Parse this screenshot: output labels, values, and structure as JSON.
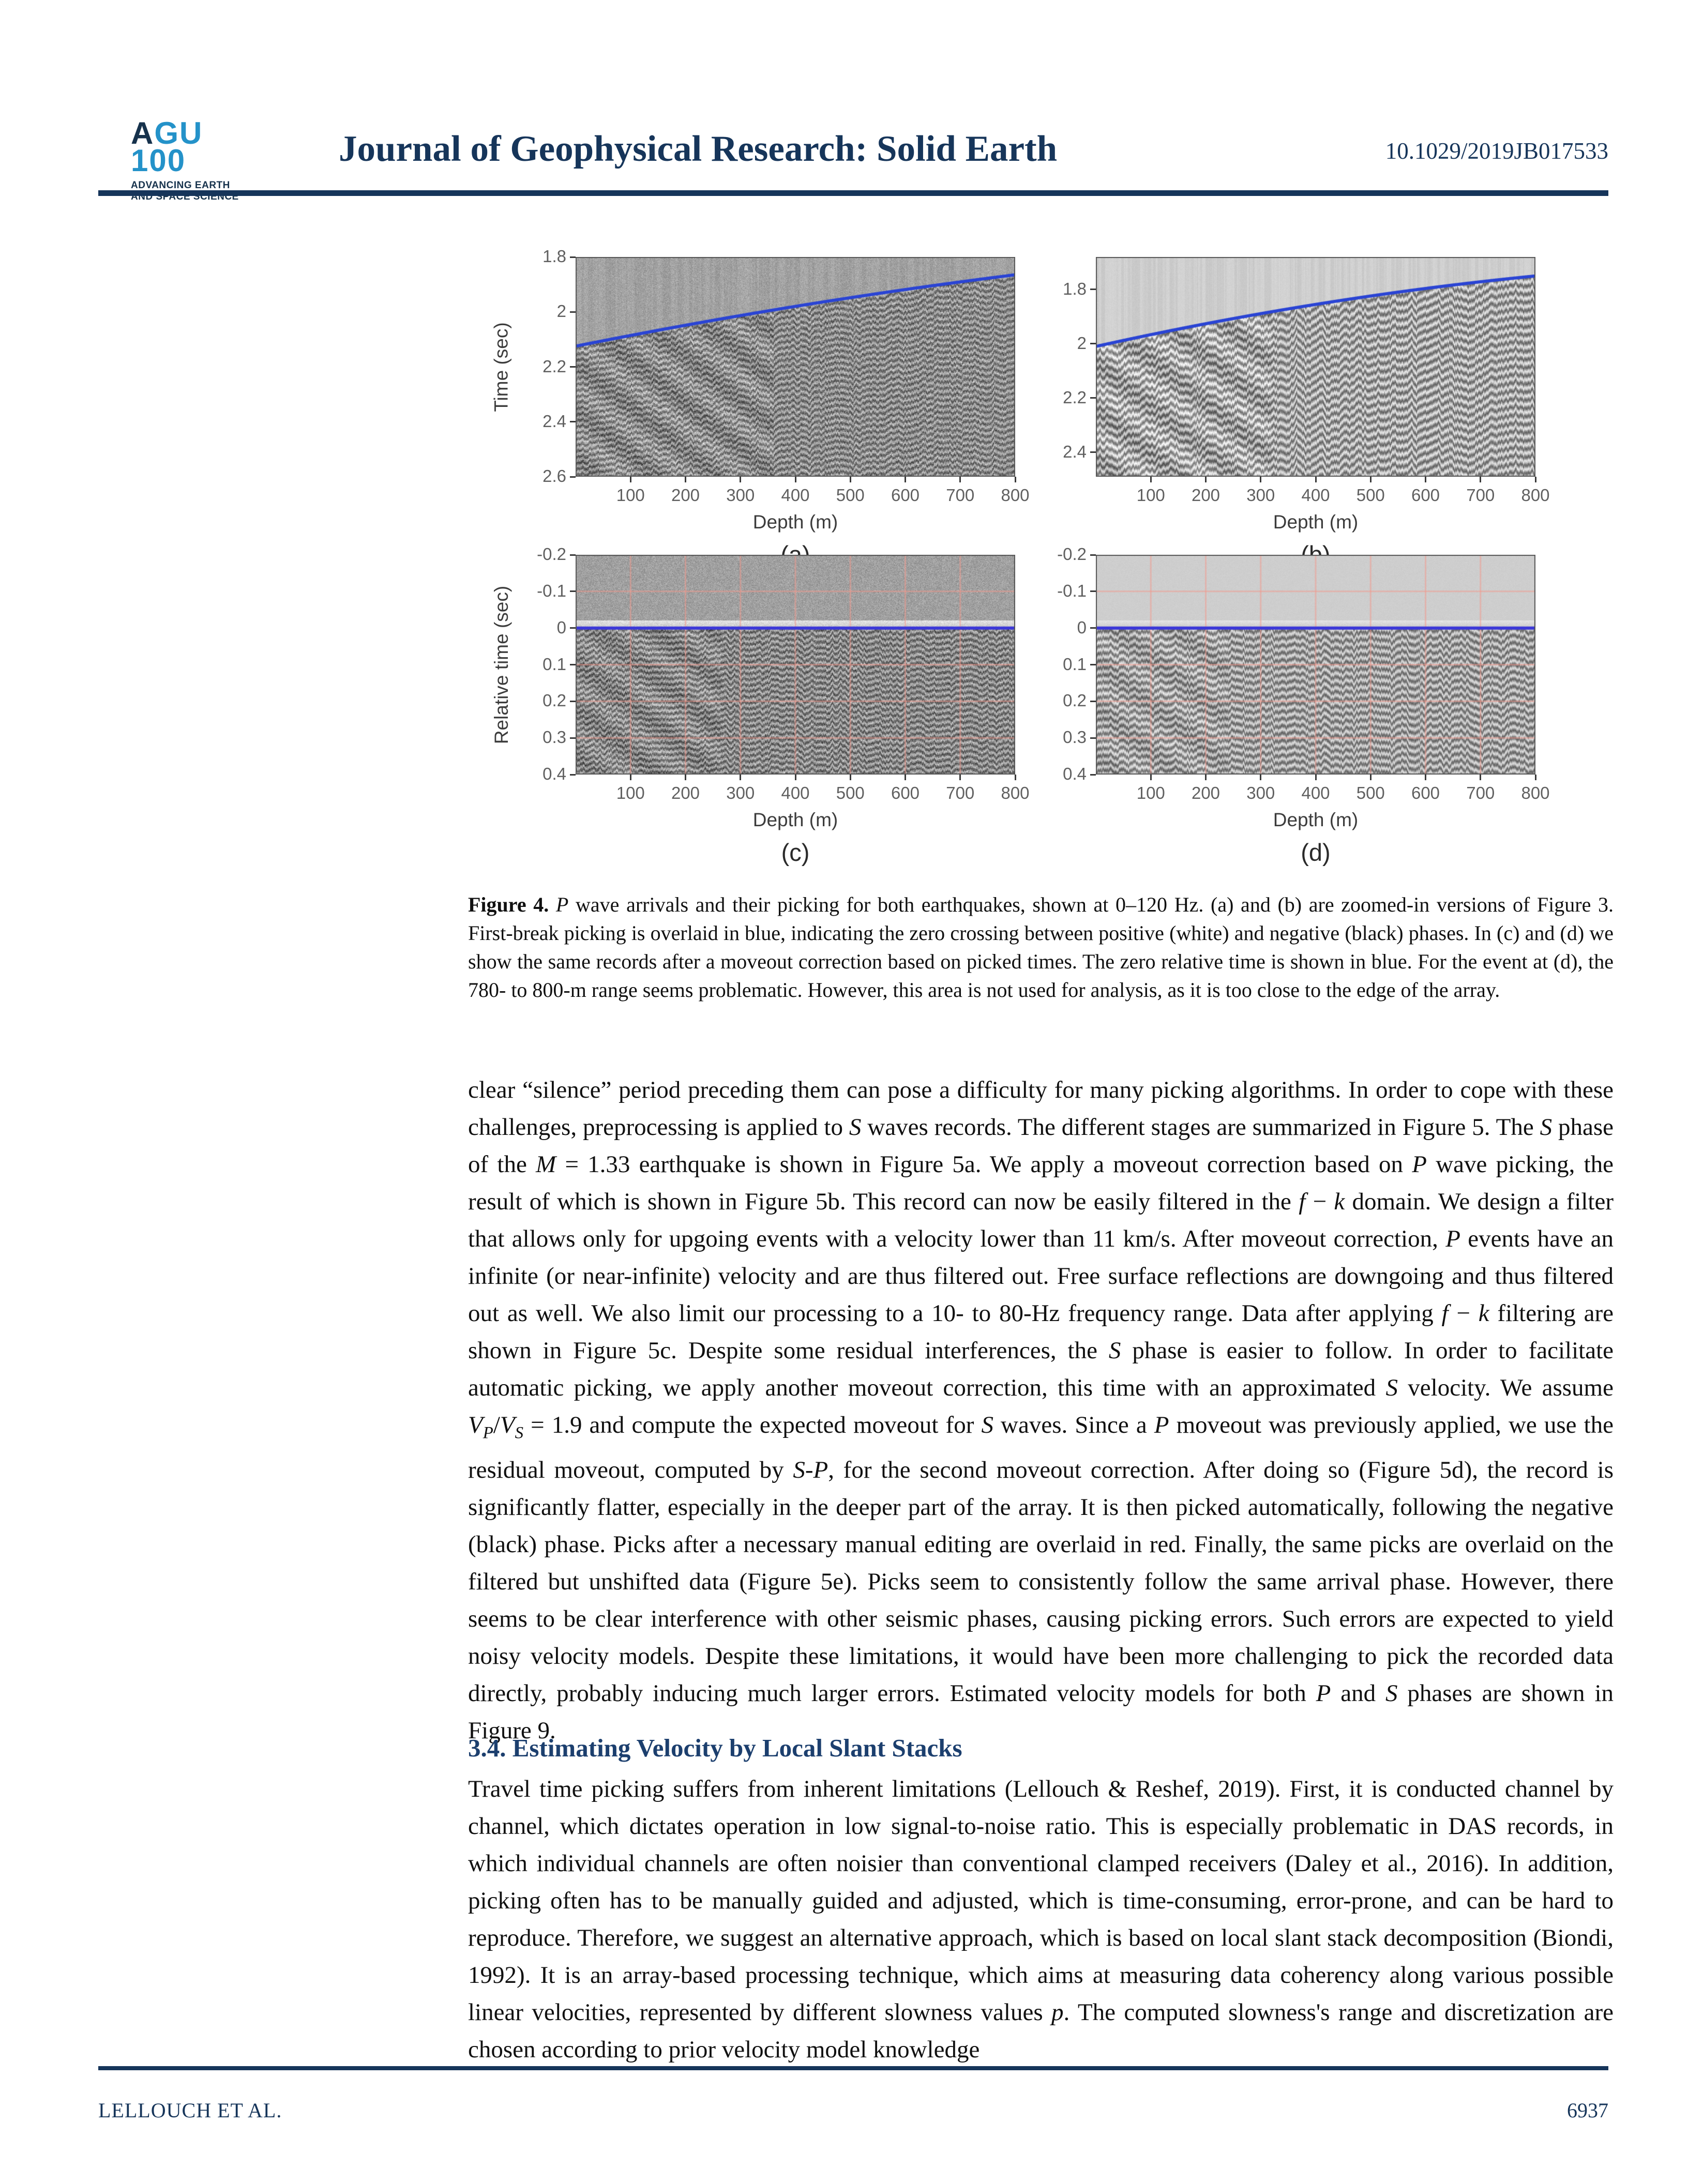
{
  "header": {
    "journal_title": "Journal of Geophysical Research: Solid Earth",
    "doi": "10.1029/2019JB017533",
    "logo": {
      "line1": "AGU",
      "line2": "100",
      "tagline1": "ADVANCING EARTH",
      "tagline2": "AND SPACE SCIENCE"
    }
  },
  "chart_data": {
    "type": "heatmap",
    "figure_label": "Figure 4",
    "colors": {
      "pick_line": "#2a44d4",
      "zero_line": "#3b37d8",
      "grid_line": "#f4978c",
      "navy": "#16355a"
    },
    "panels": [
      {
        "id": "a",
        "sublabel": "(a)",
        "xlabel": "Depth (m)",
        "ylabel": "Time (sec)",
        "xlim": [
          0,
          800
        ],
        "xticks": [
          100,
          200,
          300,
          400,
          500,
          600,
          700,
          800
        ],
        "ylim": [
          1.8,
          2.6
        ],
        "yticks": [
          {
            "v": 1.8,
            "l": "1.8"
          },
          {
            "v": 2,
            "l": "2"
          },
          {
            "v": 2.2,
            "l": "2.2"
          },
          {
            "v": 2.4,
            "l": "2.4"
          },
          {
            "v": 2.6,
            "l": "2.6"
          }
        ],
        "pick_depths": [
          0,
          400,
          800
        ],
        "pick_times": [
          2.125,
          1.98,
          1.865
        ],
        "texture": "grainy",
        "grid": false
      },
      {
        "id": "b",
        "sublabel": "(b)",
        "xlabel": "Depth (m)",
        "ylabel": null,
        "xlim": [
          0,
          800
        ],
        "xticks": [
          100,
          200,
          300,
          400,
          500,
          600,
          700,
          800
        ],
        "ylim": [
          1.68,
          2.49
        ],
        "yticks": [
          {
            "v": 1.8,
            "l": "1.8"
          },
          {
            "v": 2,
            "l": "2"
          },
          {
            "v": 2.2,
            "l": "2.2"
          },
          {
            "v": 2.4,
            "l": "2.4"
          }
        ],
        "pick_depths": [
          0,
          400,
          800
        ],
        "pick_times": [
          2.01,
          1.855,
          1.75
        ],
        "texture": "smooth",
        "grid": false
      },
      {
        "id": "c",
        "sublabel": "(c)",
        "xlabel": "Depth (m)",
        "ylabel": "Relative time (sec)",
        "xlim": [
          0,
          800
        ],
        "xticks": [
          100,
          200,
          300,
          400,
          500,
          600,
          700,
          800
        ],
        "ylim": [
          -0.2,
          0.4
        ],
        "yticks": [
          {
            "v": -0.2,
            "l": "-0.2"
          },
          {
            "v": -0.1,
            "l": "-0.1"
          },
          {
            "v": 0,
            "l": "0"
          },
          {
            "v": 0.1,
            "l": "0.1"
          },
          {
            "v": 0.2,
            "l": "0.2"
          },
          {
            "v": 0.3,
            "l": "0.3"
          },
          {
            "v": 0.4,
            "l": "0.4"
          }
        ],
        "zero_line_time": 0,
        "texture": "grainy",
        "grid": true
      },
      {
        "id": "d",
        "sublabel": "(d)",
        "xlabel": "Depth (m)",
        "ylabel": null,
        "xlim": [
          0,
          800
        ],
        "xticks": [
          100,
          200,
          300,
          400,
          500,
          600,
          700,
          800
        ],
        "ylim": [
          -0.2,
          0.4
        ],
        "yticks": [
          {
            "v": -0.2,
            "l": "-0.2"
          },
          {
            "v": -0.1,
            "l": "-0.1"
          },
          {
            "v": 0,
            "l": "0"
          },
          {
            "v": 0.1,
            "l": "0.1"
          },
          {
            "v": 0.2,
            "l": "0.2"
          },
          {
            "v": 0.3,
            "l": "0.3"
          },
          {
            "v": 0.4,
            "l": "0.4"
          }
        ],
        "zero_line_time": 0,
        "texture": "smooth",
        "grid": true
      }
    ]
  },
  "figure": {
    "caption_segments": [
      {
        "t": "Figure 4.",
        "b": 1
      },
      {
        "t": " "
      },
      {
        "t": "P",
        "i": 1
      },
      {
        "t": " wave arrivals and their picking for both earthquakes, shown at 0–120 Hz. (a) and (b) are zoomed-in versions of Figure 3. First-break picking is overlaid in blue, indicating the zero crossing between positive (white) and negative (black) phases. In (c) and (d) we show the same records after a moveout correction based on picked times. The zero relative time is shown in blue. For the event at (d), the 780- to 800-m range seems problematic. However, this area is not used for analysis, as it is too close to the edge of the array."
      }
    ]
  },
  "body": {
    "para1_segments": [
      {
        "t": "clear “silence” period preceding them can pose a difficulty for many picking algorithms. In order to cope with these challenges, preprocessing is applied to "
      },
      {
        "t": "S",
        "i": 1
      },
      {
        "t": " waves records. The different stages are summarized in Figure 5. The "
      },
      {
        "t": "S",
        "i": 1
      },
      {
        "t": " phase of the "
      },
      {
        "t": "M",
        "i": 1
      },
      {
        "t": " = 1.33 earthquake is shown in Figure 5a. We apply a moveout correction based on "
      },
      {
        "t": "P",
        "i": 1
      },
      {
        "t": " wave picking, the result of which is shown in Figure 5b. This record can now be easily filtered in the "
      },
      {
        "t": "f",
        "i": 1
      },
      {
        "t": " − "
      },
      {
        "t": "k",
        "i": 1
      },
      {
        "t": " domain. We design a filter that allows only for upgoing events with a velocity lower than 11 km/s. After moveout correction, "
      },
      {
        "t": "P",
        "i": 1
      },
      {
        "t": " events have an infinite (or near-infinite) velocity and are thus filtered out. Free surface reflections are downgoing and thus filtered out as well. We also limit our processing to a 10- to 80-Hz frequency range. Data after applying "
      },
      {
        "t": "f",
        "i": 1
      },
      {
        "t": " − "
      },
      {
        "t": "k",
        "i": 1
      },
      {
        "t": " filtering are shown in Figure 5c. Despite some residual interferences, the "
      },
      {
        "t": "S",
        "i": 1
      },
      {
        "t": " phase is easier to follow. In order to facilitate automatic picking, we apply another moveout correction, this time with an approximated "
      },
      {
        "t": "S",
        "i": 1
      },
      {
        "t": " velocity. We assume "
      },
      {
        "t": "V",
        "i": 1
      },
      {
        "t": "P",
        "i": 1,
        "sub": 1
      },
      {
        "t": "/"
      },
      {
        "t": "V",
        "i": 1
      },
      {
        "t": "S",
        "i": 1,
        "sub": 1
      },
      {
        "t": " = 1.9 and compute the expected moveout for "
      },
      {
        "t": "S",
        "i": 1
      },
      {
        "t": " waves. Since a "
      },
      {
        "t": "P",
        "i": 1
      },
      {
        "t": " moveout was previously applied, we use the residual moveout, computed by "
      },
      {
        "t": "S-P",
        "i": 1
      },
      {
        "t": ", for the second moveout correction. After doing so (Figure 5d), the record is significantly flatter, especially in the deeper part of the array. It is then picked automatically, following the negative (black) phase. Picks after a necessary manual editing are overlaid in red. Finally, the same picks are overlaid on the filtered but unshifted data (Figure 5e). Picks seem to consistently follow the same arrival phase. However, there seems to be clear interference with other seismic phases, causing picking errors. Such errors are expected to yield noisy velocity models. Despite these limitations, it would have been more challenging to pick the recorded data directly, probably inducing much larger errors. Estimated velocity models for both "
      },
      {
        "t": "P",
        "i": 1
      },
      {
        "t": " and "
      },
      {
        "t": "S",
        "i": 1
      },
      {
        "t": " phases are shown in Figure 9."
      }
    ],
    "heading": "3.4. Estimating Velocity by Local Slant Stacks",
    "para2_segments": [
      {
        "t": "Travel time picking suffers from inherent limitations (Lellouch & Reshef, 2019). First, it is conducted channel by channel, which dictates operation in low signal-to-noise ratio. This is especially problematic in DAS records, in which individual channels are often noisier than conventional clamped receivers (Daley et al., 2016). In addition, picking often has to be manually guided and adjusted, which is time-consuming, error-prone, and can be hard to reproduce. Therefore, we suggest an alternative approach, which is based on local slant stack decomposition (Biondi, 1992). It is an array-based processing technique, which aims at measuring data coherency along various possible linear velocities, represented by different slowness values "
      },
      {
        "t": "p",
        "i": 1
      },
      {
        "t": ". The computed slowness's range and discretization are chosen according to prior velocity model knowledge"
      }
    ]
  },
  "footer": {
    "authors": "LELLOUCH ET AL.",
    "page": "6937"
  }
}
